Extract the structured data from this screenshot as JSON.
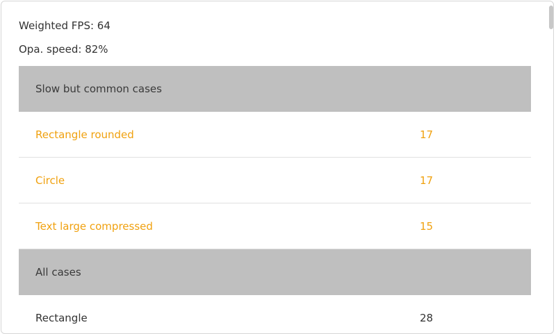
{
  "summary": [
    "Weighted FPS: 64",
    "Opa. speed: 82%"
  ],
  "table": {
    "sections": [
      {
        "title": "Slow but common cases",
        "highlight": true,
        "rows": [
          [
            "Rectangle rounded",
            17
          ],
          [
            "Circle",
            17
          ],
          [
            "Text large compressed",
            15
          ]
        ]
      },
      {
        "title": "All cases",
        "highlight": false,
        "rows": [
          [
            "Rectangle",
            28
          ]
        ]
      }
    ]
  }
}
